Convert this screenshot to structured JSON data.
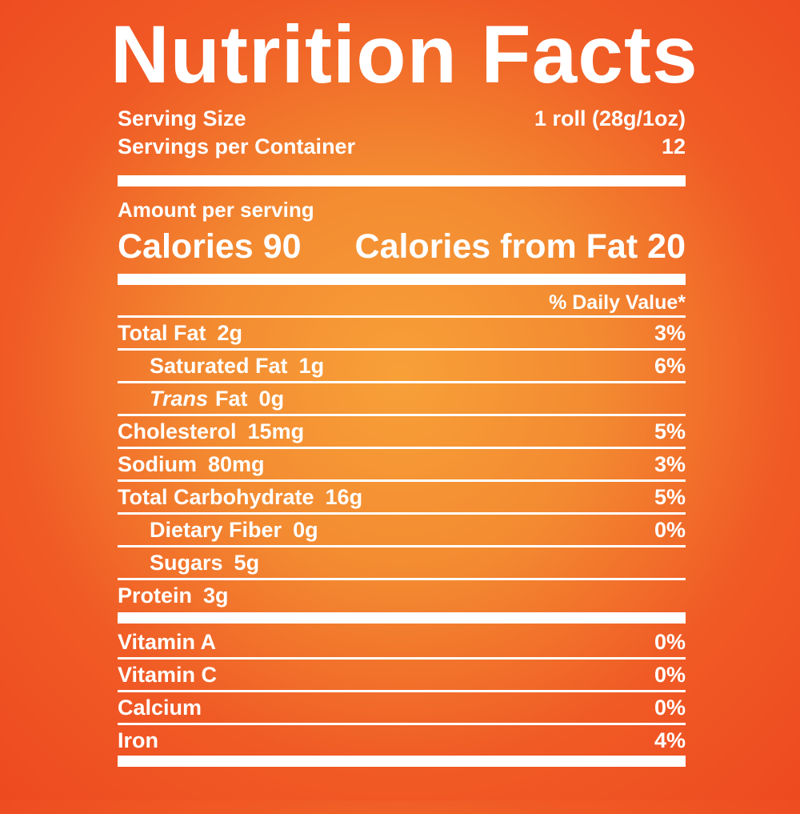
{
  "colors": {
    "background_center": "#F8A038",
    "background_edge": "#EE4A20",
    "text": "#FFFFFF"
  },
  "title": "Nutrition Facts",
  "serving": {
    "size_label": "Serving Size",
    "size_value": "1 roll (28g/1oz)",
    "per_container_label": "Servings per Container",
    "per_container_value": "12"
  },
  "amount_per_serving_label": "Amount per serving",
  "calories": {
    "calories_label": "Calories",
    "calories_value": "90",
    "calories_from_fat_label": "Calories from Fat",
    "calories_from_fat_value": "20"
  },
  "daily_value_header": "% Daily Value*",
  "nutrients": [
    {
      "name": "Total Fat",
      "amount": "2g",
      "daily_value": "3%",
      "indent": false
    },
    {
      "name": "Saturated Fat",
      "amount": "1g",
      "daily_value": "6%",
      "indent": true
    },
    {
      "name_italic": "Trans",
      "name": "Fat",
      "amount": "0g",
      "daily_value": "",
      "indent": true
    },
    {
      "name": "Cholesterol",
      "amount": "15mg",
      "daily_value": "5%",
      "indent": false
    },
    {
      "name": "Sodium",
      "amount": "80mg",
      "daily_value": "3%",
      "indent": false
    },
    {
      "name": "Total Carbohydrate",
      "amount": "16g",
      "daily_value": "5%",
      "indent": false
    },
    {
      "name": "Dietary Fiber",
      "amount": "0g",
      "daily_value": "0%",
      "indent": true
    },
    {
      "name": "Sugars",
      "amount": "5g",
      "daily_value": "",
      "indent": true
    },
    {
      "name": "Protein",
      "amount": "3g",
      "daily_value": "",
      "indent": false
    }
  ],
  "vitamins_minerals": [
    {
      "name": "Vitamin A",
      "daily_value": "0%"
    },
    {
      "name": "Vitamin C",
      "daily_value": "0%"
    },
    {
      "name": "Calcium",
      "daily_value": "0%"
    },
    {
      "name": "Iron",
      "daily_value": "4%"
    }
  ]
}
